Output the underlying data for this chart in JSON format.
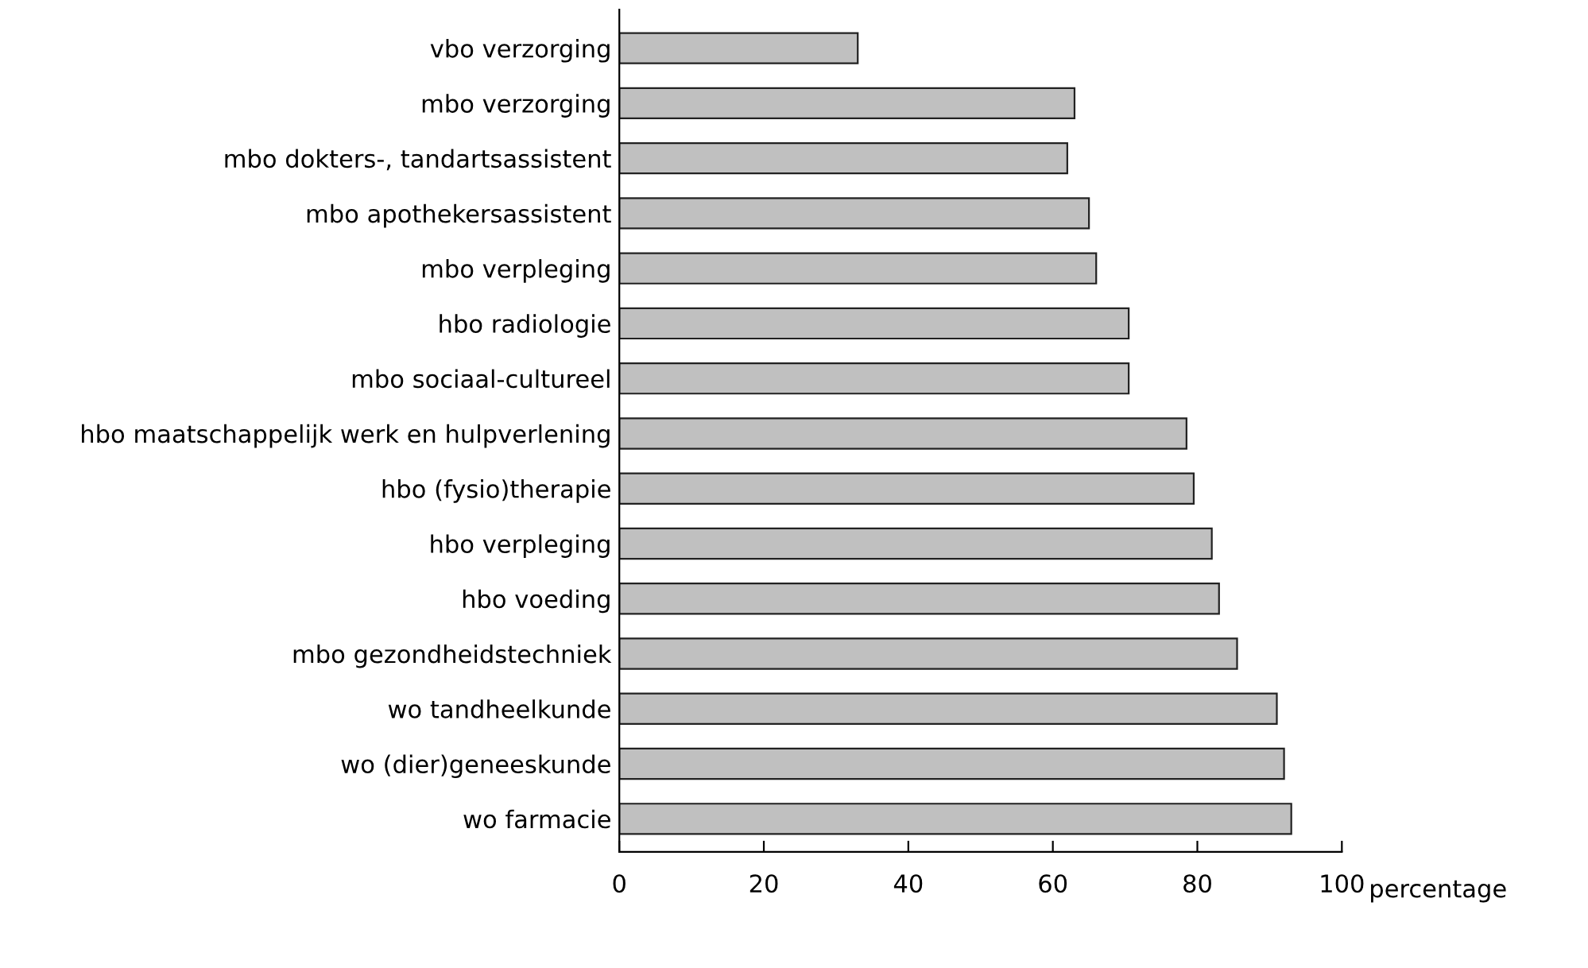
{
  "chart_data": {
    "type": "bar",
    "orientation": "horizontal",
    "xlabel": "percentage",
    "categories": [
      "vbo verzorging",
      "mbo verzorging",
      "mbo dokters-, tandartsassistent",
      "mbo apothekersassistent",
      "mbo verpleging",
      "hbo radiologie",
      "mbo sociaal-cultureel",
      "hbo maatschappelijk werk en hulpverlening",
      "hbo (fysio)therapie",
      "hbo verpleging",
      "hbo voeding",
      "mbo gezondheidstechniek",
      "wo tandheelkunde",
      "wo (dier)geneeskunde",
      "wo farmacie"
    ],
    "values": [
      33,
      63,
      62,
      65,
      66,
      70.5,
      70.5,
      78.5,
      79.5,
      82,
      83,
      85.5,
      91,
      92,
      93
    ],
    "color": "#c0c0c0",
    "xlim": [
      0,
      100
    ],
    "xticks": [
      0,
      20,
      40,
      60,
      80,
      100
    ],
    "grid": false,
    "legend": false
  }
}
